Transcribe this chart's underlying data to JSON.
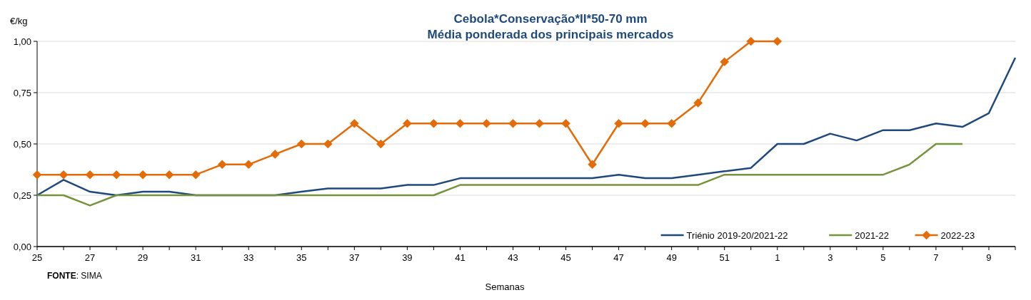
{
  "chart_data": {
    "type": "line",
    "title": "Cebola*Conservação*II*50-70 mm",
    "subtitle": "Média ponderada dos principais mercados",
    "xlabel": "Semanas",
    "ylabel": "€/kg",
    "annotations": [
      "FONTE: SIMA"
    ],
    "categories": [
      "25",
      null,
      "27",
      null,
      "29",
      null,
      "31",
      null,
      "33",
      null,
      "35",
      null,
      "37",
      null,
      "39",
      null,
      "41",
      null,
      "43",
      null,
      "45",
      null,
      "47",
      null,
      "49",
      null,
      "51",
      null,
      "1",
      null,
      "3",
      null,
      "5",
      null,
      "7",
      null,
      "9",
      null
    ],
    "series": [
      {
        "name": "Triénio 2019-20/2021-22",
        "color": "#1f497d",
        "marker": "none",
        "values": [
          0.25,
          0.325,
          0.267,
          0.25,
          0.267,
          0.267,
          0.25,
          0.25,
          0.25,
          0.25,
          0.267,
          0.283,
          0.283,
          0.283,
          0.3,
          0.3,
          0.333,
          0.333,
          0.333,
          0.333,
          0.333,
          0.333,
          0.35,
          0.333,
          0.333,
          0.35,
          0.367,
          0.383,
          0.5,
          0.5,
          0.55,
          0.517,
          0.567,
          0.567,
          0.6,
          0.583,
          0.65,
          0.92
        ]
      },
      {
        "name": "2021-22",
        "color": "#77933c",
        "marker": "none",
        "values": [
          0.25,
          0.25,
          0.2,
          0.25,
          0.25,
          0.25,
          0.25,
          0.25,
          0.25,
          0.25,
          0.25,
          0.25,
          0.25,
          0.25,
          0.25,
          0.25,
          0.3,
          0.3,
          0.3,
          0.3,
          0.3,
          0.3,
          0.3,
          0.3,
          0.3,
          0.3,
          0.35,
          0.35,
          0.35,
          0.35,
          0.35,
          0.35,
          0.35,
          0.4,
          0.5,
          0.5,
          null,
          null
        ]
      },
      {
        "name": "2022-23",
        "color": "#e36c09",
        "marker": "diamond",
        "values": [
          0.35,
          0.35,
          0.35,
          0.35,
          0.35,
          0.35,
          0.35,
          0.4,
          0.4,
          0.45,
          0.5,
          0.5,
          0.6,
          0.5,
          0.6,
          0.6,
          0.6,
          0.6,
          0.6,
          0.6,
          0.6,
          0.4,
          0.6,
          0.6,
          0.6,
          0.7,
          0.9,
          1.0,
          1.0,
          null,
          null,
          null,
          null,
          null,
          null,
          null,
          null,
          null
        ]
      }
    ],
    "ylim": [
      0,
      1
    ],
    "yticks": [
      {
        "value": 0,
        "label": "0,00"
      },
      {
        "value": 0.25,
        "label": "0,25"
      },
      {
        "value": 0.5,
        "label": "0,50"
      },
      {
        "value": 0.75,
        "label": "0,75"
      },
      {
        "value": 1,
        "label": "1,00"
      }
    ],
    "grid": "y",
    "legend": "bottom right"
  }
}
